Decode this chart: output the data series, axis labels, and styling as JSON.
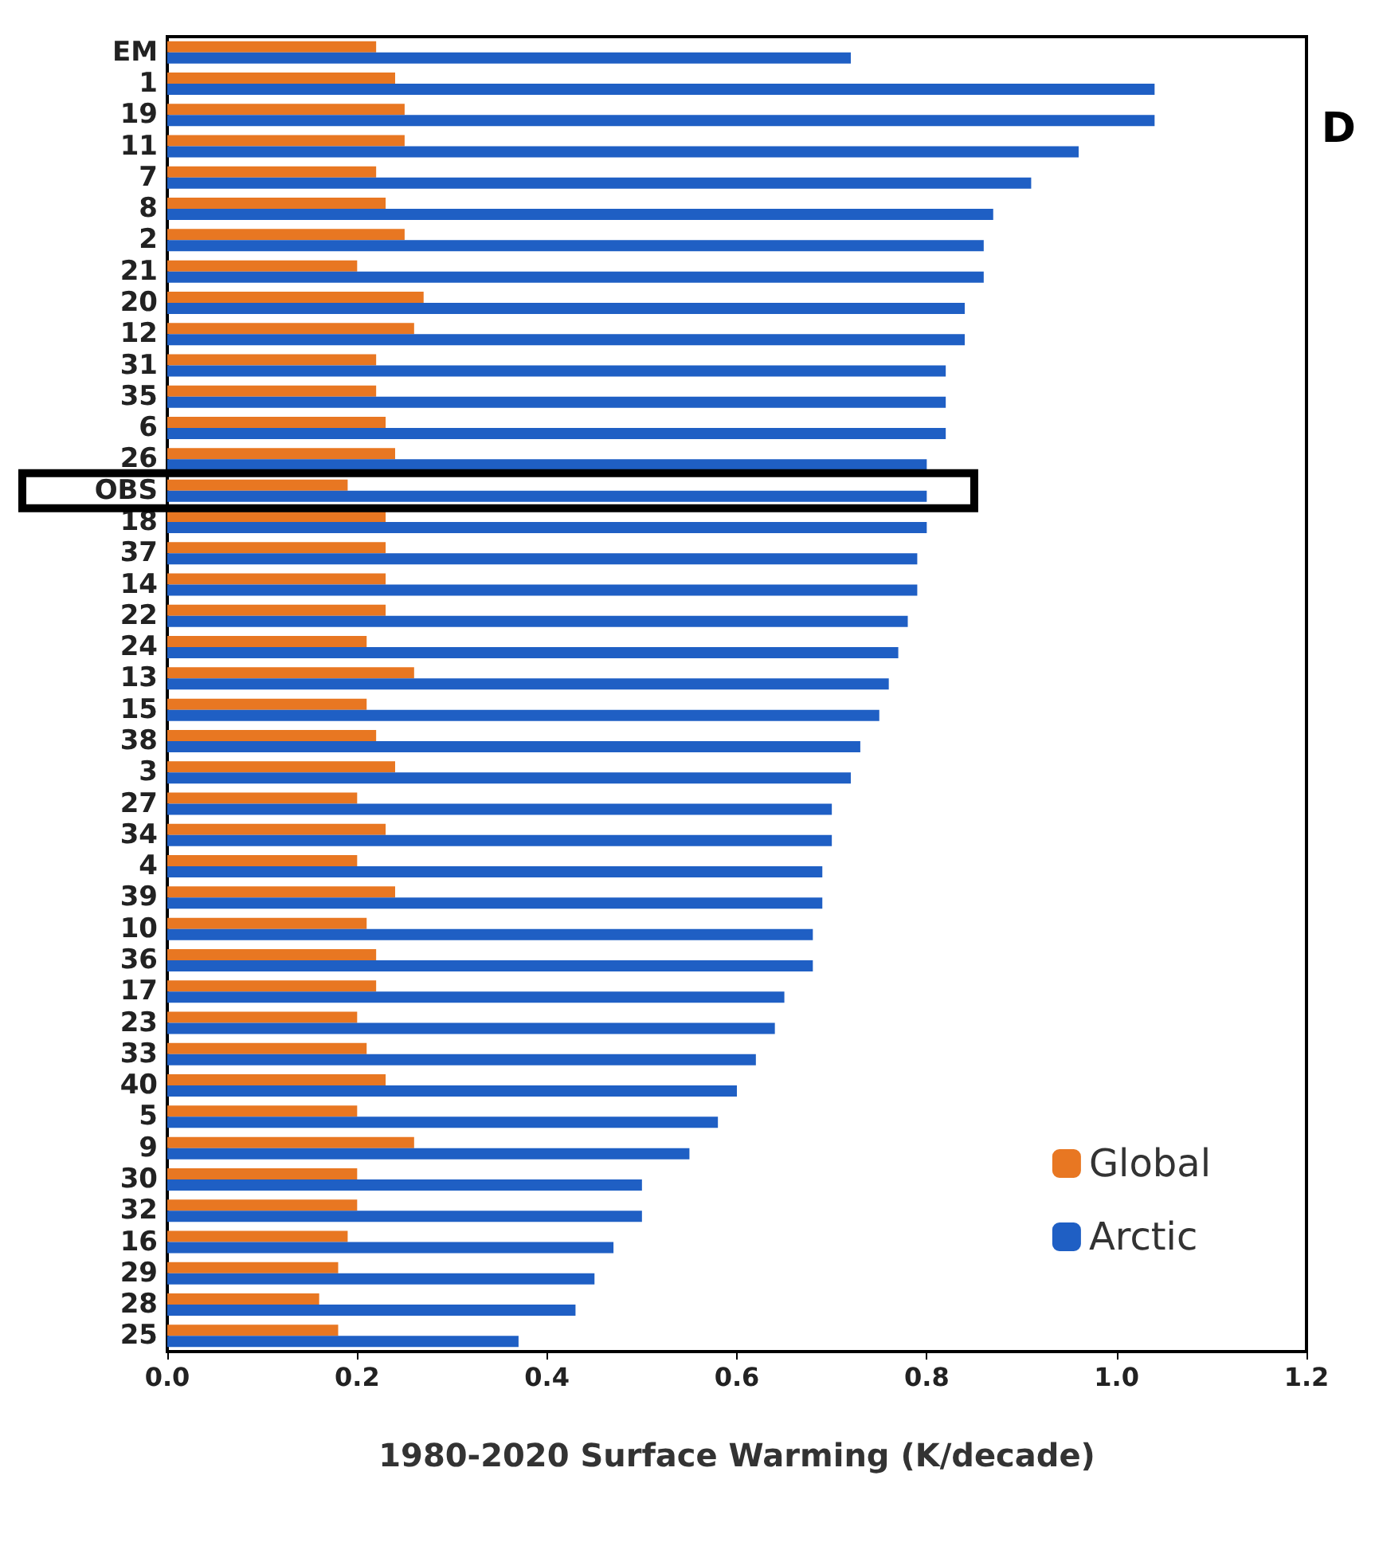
{
  "chart_data": {
    "type": "bar",
    "orientation": "horizontal",
    "xlabel": "1980-2020 Surface Warming (K/decade)",
    "categories": [
      "EM",
      "1",
      "19",
      "11",
      "7",
      "8",
      "2",
      "21",
      "20",
      "12",
      "31",
      "35",
      "6",
      "26",
      "OBS",
      "18",
      "37",
      "14",
      "22",
      "24",
      "13",
      "15",
      "38",
      "3",
      "27",
      "34",
      "4",
      "39",
      "10",
      "36",
      "17",
      "23",
      "33",
      "40",
      "5",
      "9",
      "30",
      "32",
      "16",
      "29",
      "28",
      "25"
    ],
    "series": [
      {
        "name": "Global",
        "color": "#e87722",
        "values": [
          0.22,
          0.24,
          0.25,
          0.25,
          0.22,
          0.23,
          0.25,
          0.2,
          0.27,
          0.26,
          0.22,
          0.22,
          0.23,
          0.24,
          0.19,
          0.23,
          0.23,
          0.23,
          0.23,
          0.21,
          0.26,
          0.21,
          0.22,
          0.24,
          0.2,
          0.23,
          0.2,
          0.24,
          0.21,
          0.22,
          0.22,
          0.2,
          0.21,
          0.23,
          0.2,
          0.26,
          0.2,
          0.2,
          0.19,
          0.18,
          0.16,
          0.18
        ]
      },
      {
        "name": "Arctic",
        "color": "#1f5fc4",
        "values": [
          0.72,
          1.04,
          1.04,
          0.96,
          0.91,
          0.87,
          0.86,
          0.86,
          0.84,
          0.84,
          0.82,
          0.82,
          0.82,
          0.8,
          0.8,
          0.8,
          0.79,
          0.79,
          0.78,
          0.77,
          0.76,
          0.75,
          0.73,
          0.72,
          0.7,
          0.7,
          0.69,
          0.69,
          0.68,
          0.68,
          0.65,
          0.64,
          0.62,
          0.6,
          0.58,
          0.55,
          0.5,
          0.5,
          0.47,
          0.45,
          0.43,
          0.37
        ]
      }
    ],
    "xlim": [
      0,
      1.2
    ],
    "xticks": [
      {
        "value": 0,
        "label": "0.0"
      },
      {
        "value": 0.2,
        "label": "0.2"
      },
      {
        "value": 0.4,
        "label": "0.4"
      },
      {
        "value": 0.6,
        "label": "0.6"
      },
      {
        "value": 0.8,
        "label": "0.8"
      },
      {
        "value": 1,
        "label": "1.0"
      },
      {
        "value": 1.2,
        "label": "1.2"
      }
    ],
    "grid": false,
    "legend": "bottom right",
    "annotations": [
      "D"
    ]
  }
}
